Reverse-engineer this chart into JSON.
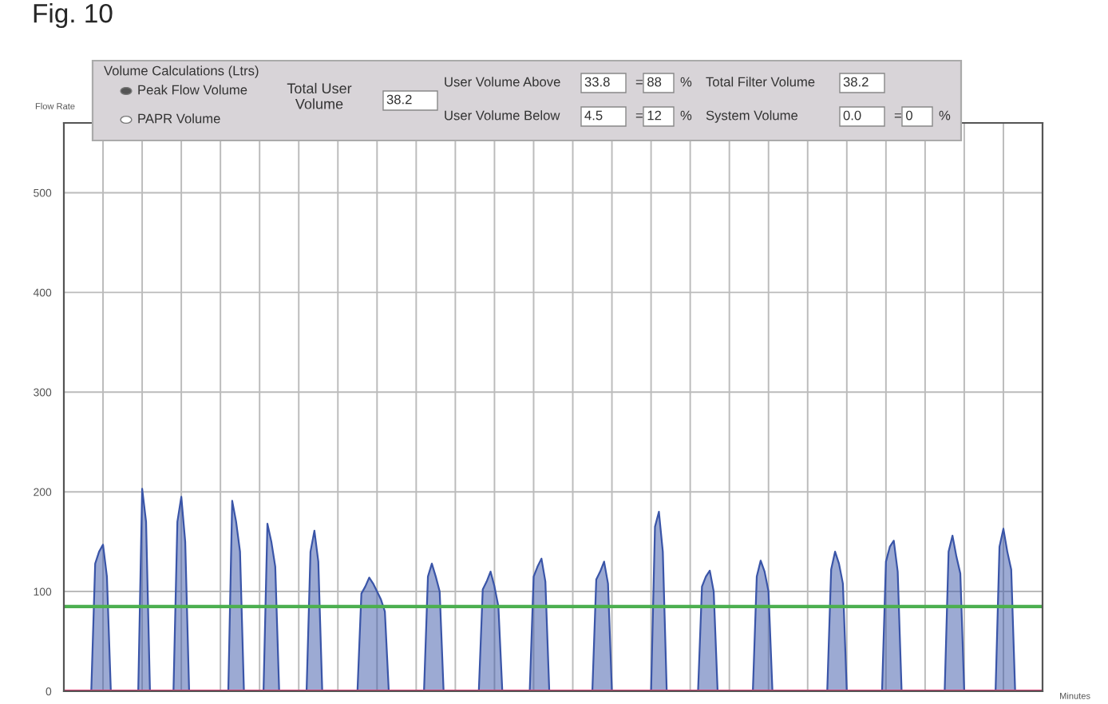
{
  "chart_data": {
    "type": "area",
    "title": "Fig. 10",
    "ylabel": "Flow Rate",
    "xlabel": "Minutes",
    "categories": [
      null,
      null,
      null,
      null,
      null,
      null,
      null,
      null,
      null,
      null,
      null,
      null,
      null,
      null,
      null,
      null,
      null,
      null,
      null,
      null,
      null,
      null,
      null,
      null,
      null,
      null,
      null,
      null,
      null,
      null,
      null,
      null,
      null,
      null,
      null,
      null,
      null,
      null,
      null,
      null,
      null,
      null,
      null,
      null,
      null,
      null,
      null,
      null,
      null,
      null,
      null,
      null,
      null,
      null,
      null,
      null,
      null,
      null,
      null,
      null,
      null,
      null,
      null,
      null,
      null,
      null,
      null,
      null,
      null,
      null,
      null,
      null,
      null,
      null,
      null,
      null,
      null,
      null,
      null,
      null,
      null,
      null,
      null,
      null,
      null,
      null,
      null,
      null,
      null,
      null,
      null,
      null,
      null,
      null,
      null,
      null,
      null,
      null,
      null,
      null,
      null,
      null,
      null,
      null,
      null,
      null,
      null,
      null,
      null,
      null,
      null,
      null,
      null,
      null,
      null,
      null,
      null,
      null,
      null,
      null,
      null,
      null,
      null,
      null,
      null,
      null,
      null,
      null,
      null,
      null,
      null,
      null,
      null,
      null,
      null,
      null,
      null,
      null,
      null,
      null,
      null,
      null,
      null,
      null,
      null,
      null,
      null,
      null,
      null,
      null,
      null,
      null,
      null,
      null,
      null,
      null,
      null,
      null,
      null,
      null,
      null,
      null,
      null,
      null,
      null,
      null,
      null,
      null,
      null,
      null,
      null,
      null,
      null,
      null,
      null,
      null,
      null,
      null,
      null,
      null,
      null,
      null,
      null,
      null,
      null,
      null,
      null,
      null,
      null,
      null,
      null,
      null,
      null,
      null,
      null,
      null,
      null,
      null,
      null,
      null,
      null,
      null,
      null,
      null,
      null,
      null,
      null,
      null,
      null,
      null,
      null,
      null,
      null,
      null,
      null,
      null,
      null,
      null,
      null,
      null,
      null,
      null,
      null,
      null,
      null,
      null,
      null,
      null,
      null,
      null,
      null,
      null,
      null,
      null,
      null,
      null,
      null,
      null,
      null,
      null,
      null,
      null,
      null,
      null,
      null,
      null,
      null,
      null,
      null,
      null,
      null
    ],
    "ylim": [
      0,
      570
    ],
    "yticks": [
      0,
      100,
      200,
      300,
      400,
      500
    ],
    "grid": true,
    "ref_lines": [
      {
        "axis": "y",
        "value": 85,
        "color": "#4caf50"
      },
      {
        "axis": "y",
        "value": 0,
        "color": "#d04070"
      }
    ],
    "series": [
      {
        "color": "#3a55a8",
        "values": [
          0,
          0,
          0,
          0,
          0,
          0,
          0,
          0,
          128,
          140,
          147,
          115,
          0,
          0,
          0,
          0,
          0,
          0,
          0,
          0,
          203,
          170,
          0,
          0,
          0,
          0,
          0,
          0,
          0,
          170,
          195,
          150,
          0,
          0,
          0,
          0,
          0,
          0,
          0,
          0,
          0,
          0,
          0,
          191,
          170,
          140,
          0,
          0,
          0,
          0,
          0,
          0,
          168,
          150,
          125,
          0,
          0,
          0,
          0,
          0,
          0,
          0,
          0,
          140,
          161,
          130,
          0,
          0,
          0,
          0,
          0,
          0,
          0,
          0,
          0,
          0,
          98,
          105,
          114,
          108,
          100,
          92,
          80,
          0,
          0,
          0,
          0,
          0,
          0,
          0,
          0,
          0,
          0,
          115,
          128,
          115,
          100,
          0,
          0,
          0,
          0,
          0,
          0,
          0,
          0,
          0,
          0,
          102,
          110,
          120,
          105,
          85,
          0,
          0,
          0,
          0,
          0,
          0,
          0,
          0,
          115,
          125,
          133,
          110,
          0,
          0,
          0,
          0,
          0,
          0,
          0,
          0,
          0,
          0,
          0,
          0,
          112,
          120,
          130,
          108,
          0,
          0,
          0,
          0,
          0,
          0,
          0,
          0,
          0,
          0,
          0,
          165,
          180,
          140,
          0,
          0,
          0,
          0,
          0,
          0,
          0,
          0,
          0,
          105,
          115,
          121,
          100,
          0,
          0,
          0,
          0,
          0,
          0,
          0,
          0,
          0,
          0,
          115,
          131,
          120,
          100,
          0,
          0,
          0,
          0,
          0,
          0,
          0,
          0,
          0,
          0,
          0,
          0,
          0,
          0,
          0,
          122,
          140,
          128,
          108,
          0,
          0,
          0,
          0,
          0,
          0,
          0,
          0,
          0,
          0,
          130,
          145,
          151,
          120,
          0,
          0,
          0,
          0,
          0,
          0,
          0,
          0,
          0,
          0,
          0,
          0,
          140,
          156,
          135,
          118,
          0,
          0,
          0,
          0,
          0,
          0,
          0,
          0,
          0,
          145,
          163,
          140,
          122,
          0,
          0,
          0,
          0,
          0,
          0,
          0,
          0
        ]
      }
    ],
    "annotations": [
      "Volume Calculations (Ltrs)",
      "Peak Flow Volume",
      "PAPR Volume",
      "Total User Volume",
      "38.2",
      "User Volume Above",
      "33.8",
      "= 88",
      "%",
      "User Volume Below",
      "4.5",
      "= 12",
      "%",
      "Total Filter Volume",
      "38.2",
      "System Volume",
      "0.0",
      "= 0",
      "%"
    ]
  }
}
